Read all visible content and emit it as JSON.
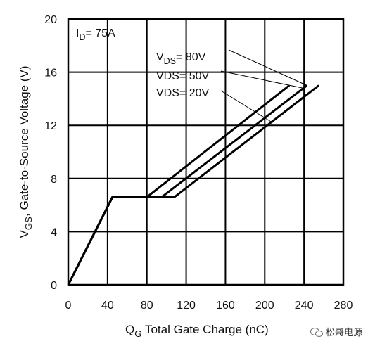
{
  "chart_data": {
    "type": "line",
    "title": "",
    "xlabel": "Q",
    "xlabel_sub": "G",
    "xlabel_rest": "Total Gate Charge (nC)",
    "ylabel": "V",
    "ylabel_sub": "GS",
    "ylabel_rest": ", Gate-to-Source Voltage (V)",
    "xlim": [
      0,
      280
    ],
    "ylim": [
      0,
      20
    ],
    "xticks": [
      0,
      40,
      80,
      120,
      160,
      200,
      240,
      280
    ],
    "yticks": [
      0,
      4,
      8,
      12,
      16,
      20
    ],
    "xtick_labels": [
      "0",
      "40",
      "80",
      "120",
      "160",
      "200",
      "240",
      "280"
    ],
    "ytick_labels": [
      "0",
      "4",
      "8",
      "12",
      "16",
      "20"
    ],
    "grid": true,
    "condition": {
      "prefix": "I",
      "sub": "D",
      "rest": "= 75A"
    },
    "series": [
      {
        "name": "VDS= 80V",
        "label_prefix": "V",
        "label_sub": "DS",
        "label_rest": "= 80V",
        "x": [
          0,
          45,
          80,
          225
        ],
        "y": [
          0,
          6.6,
          6.6,
          15.0
        ]
      },
      {
        "name": "VDS= 50V",
        "label_prefix": "",
        "label_sub": "",
        "label_rest": "VDS= 50V",
        "x": [
          0,
          45,
          95,
          243
        ],
        "y": [
          0,
          6.6,
          6.6,
          15.0
        ]
      },
      {
        "name": "VDS= 20V",
        "label_prefix": "",
        "label_sub": "",
        "label_rest": "VDS= 20V",
        "x": [
          0,
          45,
          108,
          255
        ],
        "y": [
          0,
          6.6,
          6.6,
          15.0
        ]
      }
    ],
    "annotation_targets": [
      {
        "series": 0,
        "x": 243,
        "y": 15.0
      },
      {
        "series": 1,
        "x": 239,
        "y": 14.8
      },
      {
        "series": 2,
        "x": 208,
        "y": 12.2
      }
    ]
  },
  "watermark": {
    "icon": "wechat-icon",
    "text": "松哥电源"
  }
}
